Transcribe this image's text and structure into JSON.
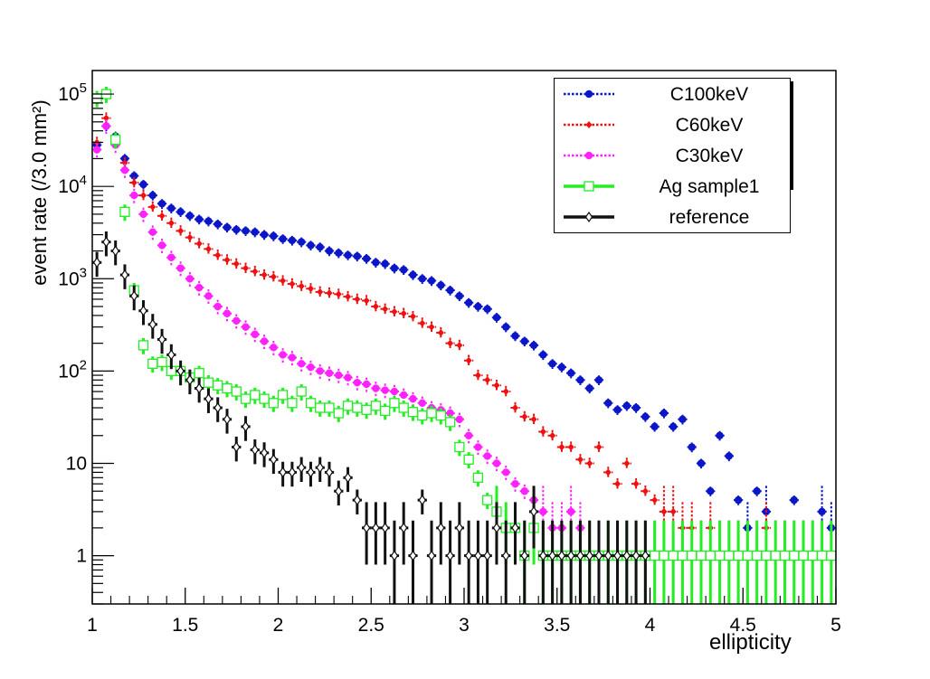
{
  "chart_data": {
    "type": "scatter",
    "xlabel": "ellipticity",
    "ylabel": "event rate (/3.0 mm²)",
    "xlim": [
      1,
      5
    ],
    "ylim": [
      0.3,
      180000
    ],
    "yscale": "log",
    "legend_position": "top-right",
    "x_ticks": [
      1,
      1.5,
      2,
      2.5,
      3,
      3.5,
      4,
      4.5,
      5
    ],
    "x_tick_labels": [
      "1",
      "1.5",
      "2",
      "2.5",
      "3",
      "3.5",
      "4",
      "4.5",
      "5"
    ],
    "y_ticks": [
      1,
      10,
      100,
      1000,
      10000,
      100000
    ],
    "y_tick_labels": [
      {
        "base": "1",
        "exp": ""
      },
      {
        "base": "10",
        "exp": ""
      },
      {
        "base": "10",
        "exp": "2"
      },
      {
        "base": "10",
        "exp": "3"
      },
      {
        "base": "10",
        "exp": "4"
      },
      {
        "base": "10",
        "exp": "5"
      }
    ],
    "series": [
      {
        "name": "C100keV",
        "color": "#0a16c8",
        "marker": "filled-circle",
        "line": "dotted",
        "x": [
          1.025,
          1.075,
          1.125,
          1.175,
          1.225,
          1.275,
          1.325,
          1.375,
          1.425,
          1.475,
          1.525,
          1.575,
          1.625,
          1.675,
          1.725,
          1.775,
          1.825,
          1.875,
          1.925,
          1.975,
          2.025,
          2.075,
          2.125,
          2.175,
          2.225,
          2.275,
          2.325,
          2.375,
          2.425,
          2.475,
          2.525,
          2.575,
          2.625,
          2.675,
          2.725,
          2.775,
          2.825,
          2.875,
          2.925,
          2.975,
          3.025,
          3.075,
          3.125,
          3.175,
          3.225,
          3.275,
          3.325,
          3.375,
          3.425,
          3.475,
          3.525,
          3.575,
          3.625,
          3.675,
          3.725,
          3.775,
          3.825,
          3.875,
          3.925,
          3.975,
          4.025,
          4.075,
          4.125,
          4.175,
          4.225,
          4.275,
          4.325,
          4.375,
          4.425,
          4.475,
          4.525,
          4.575,
          4.625,
          4.675,
          4.725,
          4.775,
          4.825,
          4.875,
          4.925,
          4.975
        ],
        "y": [
          28000,
          45000,
          35000,
          20000,
          13000,
          10500,
          8000,
          6500,
          5800,
          5300,
          4800,
          4400,
          4200,
          3900,
          3600,
          3400,
          3300,
          3200,
          3000,
          2900,
          2700,
          2600,
          2500,
          2300,
          2200,
          2000,
          1900,
          1800,
          1750,
          1650,
          1500,
          1450,
          1300,
          1250,
          1100,
          1000,
          950,
          850,
          750,
          650,
          550,
          500,
          470,
          380,
          300,
          240,
          210,
          190,
          150,
          120,
          110,
          95,
          80,
          65,
          80,
          45,
          38,
          42,
          40,
          32,
          25,
          35,
          25,
          30,
          15,
          10,
          5,
          20,
          12,
          4,
          2,
          5,
          3,
          1,
          1,
          4,
          1,
          1,
          3,
          2
        ],
        "err_frac": 0.12
      },
      {
        "name": "C60keV",
        "color": "#ee1111",
        "marker": "filled-diamond",
        "line": "dotted",
        "x": [
          1.025,
          1.075,
          1.125,
          1.175,
          1.225,
          1.275,
          1.325,
          1.375,
          1.425,
          1.475,
          1.525,
          1.575,
          1.625,
          1.675,
          1.725,
          1.775,
          1.825,
          1.875,
          1.925,
          1.975,
          2.025,
          2.075,
          2.125,
          2.175,
          2.225,
          2.275,
          2.325,
          2.375,
          2.425,
          2.475,
          2.525,
          2.575,
          2.625,
          2.675,
          2.725,
          2.775,
          2.825,
          2.875,
          2.925,
          2.975,
          3.025,
          3.075,
          3.125,
          3.175,
          3.225,
          3.275,
          3.325,
          3.375,
          3.425,
          3.475,
          3.525,
          3.575,
          3.625,
          3.675,
          3.725,
          3.775,
          3.825,
          3.875,
          3.925,
          3.975,
          4.025,
          4.075,
          4.125,
          4.175,
          4.225,
          4.275,
          4.325,
          4.375,
          4.425,
          4.475,
          4.525,
          4.575,
          4.625,
          4.675,
          4.725,
          4.775,
          4.825,
          4.875,
          4.925,
          4.975
        ],
        "y": [
          30000,
          55000,
          30000,
          18000,
          11000,
          8000,
          6000,
          4800,
          4000,
          3300,
          2800,
          2400,
          2100,
          1800,
          1600,
          1450,
          1300,
          1200,
          1100,
          1050,
          950,
          880,
          830,
          780,
          720,
          700,
          680,
          640,
          600,
          580,
          500,
          470,
          440,
          420,
          390,
          330,
          300,
          260,
          200,
          190,
          130,
          90,
          80,
          70,
          60,
          40,
          32,
          30,
          22,
          20,
          15,
          15,
          11,
          10,
          15,
          8,
          6,
          10,
          6,
          5,
          4,
          3,
          3,
          2,
          2,
          1,
          2,
          1,
          1,
          1,
          1,
          1,
          2,
          1,
          1,
          1,
          1,
          1,
          1,
          1
        ],
        "err_frac": 0.15
      },
      {
        "name": "C30keV",
        "color": "#ff22ff",
        "marker": "filled-circle",
        "line": "dotted",
        "x": [
          1.025,
          1.075,
          1.125,
          1.175,
          1.225,
          1.275,
          1.325,
          1.375,
          1.425,
          1.475,
          1.525,
          1.575,
          1.625,
          1.675,
          1.725,
          1.775,
          1.825,
          1.875,
          1.925,
          1.975,
          2.025,
          2.075,
          2.125,
          2.175,
          2.225,
          2.275,
          2.325,
          2.375,
          2.425,
          2.475,
          2.525,
          2.575,
          2.625,
          2.675,
          2.725,
          2.775,
          2.825,
          2.875,
          2.925,
          2.975,
          3.025,
          3.075,
          3.125,
          3.175,
          3.225,
          3.275,
          3.325,
          3.375,
          3.425,
          3.475,
          3.525,
          3.575,
          3.625,
          3.675,
          3.725,
          3.775,
          3.825,
          3.875,
          3.925,
          3.975,
          4.025,
          4.075,
          4.125,
          4.175,
          4.225,
          4.275,
          4.325,
          4.375,
          4.425,
          4.475,
          4.525,
          4.575,
          4.625,
          4.675,
          4.725,
          4.775,
          4.825,
          4.875,
          4.925,
          4.975
        ],
        "y": [
          25000,
          45000,
          28000,
          15000,
          8000,
          5000,
          3200,
          2300,
          1700,
          1300,
          1000,
          800,
          650,
          500,
          420,
          350,
          300,
          250,
          210,
          180,
          150,
          140,
          120,
          110,
          100,
          95,
          90,
          85,
          75,
          72,
          65,
          62,
          60,
          55,
          50,
          45,
          40,
          38,
          35,
          30,
          20,
          15,
          12,
          10,
          8,
          6,
          5,
          4,
          3,
          2,
          2,
          3,
          2,
          1,
          1,
          1,
          1,
          1,
          1,
          1,
          1,
          1,
          1,
          1,
          1,
          1,
          1,
          1,
          1,
          1,
          1,
          1,
          1,
          1,
          1,
          1,
          1,
          1,
          1,
          1
        ],
        "err_frac": 0.18
      },
      {
        "name": "Ag sample1",
        "color": "#22ee22",
        "marker": "open-square",
        "line": "solid",
        "x": [
          1.025,
          1.075,
          1.125,
          1.175,
          1.225,
          1.275,
          1.325,
          1.375,
          1.425,
          1.475,
          1.525,
          1.575,
          1.625,
          1.675,
          1.725,
          1.775,
          1.825,
          1.875,
          1.925,
          1.975,
          2.025,
          2.075,
          2.125,
          2.175,
          2.225,
          2.275,
          2.325,
          2.375,
          2.425,
          2.475,
          2.525,
          2.575,
          2.625,
          2.675,
          2.725,
          2.775,
          2.825,
          2.875,
          2.925,
          2.975,
          3.025,
          3.075,
          3.125,
          3.175,
          3.225,
          3.275,
          3.325,
          3.375,
          3.425,
          3.475,
          3.525,
          3.575,
          3.625,
          3.675,
          3.725,
          3.775,
          3.825,
          3.875,
          3.925,
          3.975,
          4.025,
          4.075,
          4.125,
          4.175,
          4.225,
          4.275,
          4.325,
          4.375,
          4.425,
          4.475,
          4.525,
          4.575,
          4.625,
          4.675,
          4.725,
          4.775,
          4.825,
          4.875,
          4.925,
          4.975
        ],
        "y": [
          90000,
          100000,
          32000,
          5300,
          750,
          190,
          120,
          125,
          100,
          100,
          85,
          95,
          75,
          70,
          65,
          60,
          50,
          55,
          50,
          45,
          55,
          45,
          60,
          45,
          40,
          40,
          35,
          42,
          40,
          38,
          42,
          37,
          45,
          40,
          36,
          33,
          35,
          33,
          28,
          15,
          11,
          7,
          4,
          3,
          2,
          2,
          1,
          2,
          1,
          1,
          1,
          1,
          1,
          1,
          1,
          1,
          1,
          1,
          1,
          1,
          1,
          1,
          1,
          1,
          1,
          1,
          1,
          1,
          1,
          1,
          1,
          1,
          1,
          1,
          1,
          1,
          1,
          1,
          1,
          1
        ],
        "err_frac": 0.2
      },
      {
        "name": "reference",
        "color": "#111111",
        "marker": "open-diamond",
        "line": "solid",
        "x": [
          1.025,
          1.075,
          1.125,
          1.175,
          1.225,
          1.275,
          1.325,
          1.375,
          1.425,
          1.475,
          1.525,
          1.575,
          1.625,
          1.675,
          1.725,
          1.775,
          1.825,
          1.875,
          1.925,
          1.975,
          2.025,
          2.075,
          2.125,
          2.175,
          2.225,
          2.275,
          2.325,
          2.375,
          2.425,
          2.475,
          2.525,
          2.575,
          2.625,
          2.675,
          2.725,
          2.775,
          2.825,
          2.875,
          2.925,
          2.975,
          3.025,
          3.075,
          3.125,
          3.175,
          3.225,
          3.275,
          3.325,
          3.375,
          3.425,
          3.475,
          3.525,
          3.575,
          3.625,
          3.675,
          3.725,
          3.775,
          3.825,
          3.875,
          3.925,
          3.975
        ],
        "y": [
          1500,
          2500,
          2000,
          1100,
          650,
          450,
          320,
          220,
          150,
          100,
          80,
          65,
          50,
          40,
          30,
          15,
          25,
          14,
          13,
          11,
          8,
          8,
          9,
          8,
          9,
          8,
          5,
          7,
          4,
          2,
          2,
          2,
          1,
          2,
          1,
          4,
          1,
          2,
          1,
          2,
          1,
          1,
          1,
          2,
          1,
          2,
          1,
          3,
          1,
          1,
          1,
          1,
          1,
          1,
          1,
          1,
          1,
          1,
          1,
          1
        ],
        "err_frac": 0.3
      }
    ]
  }
}
